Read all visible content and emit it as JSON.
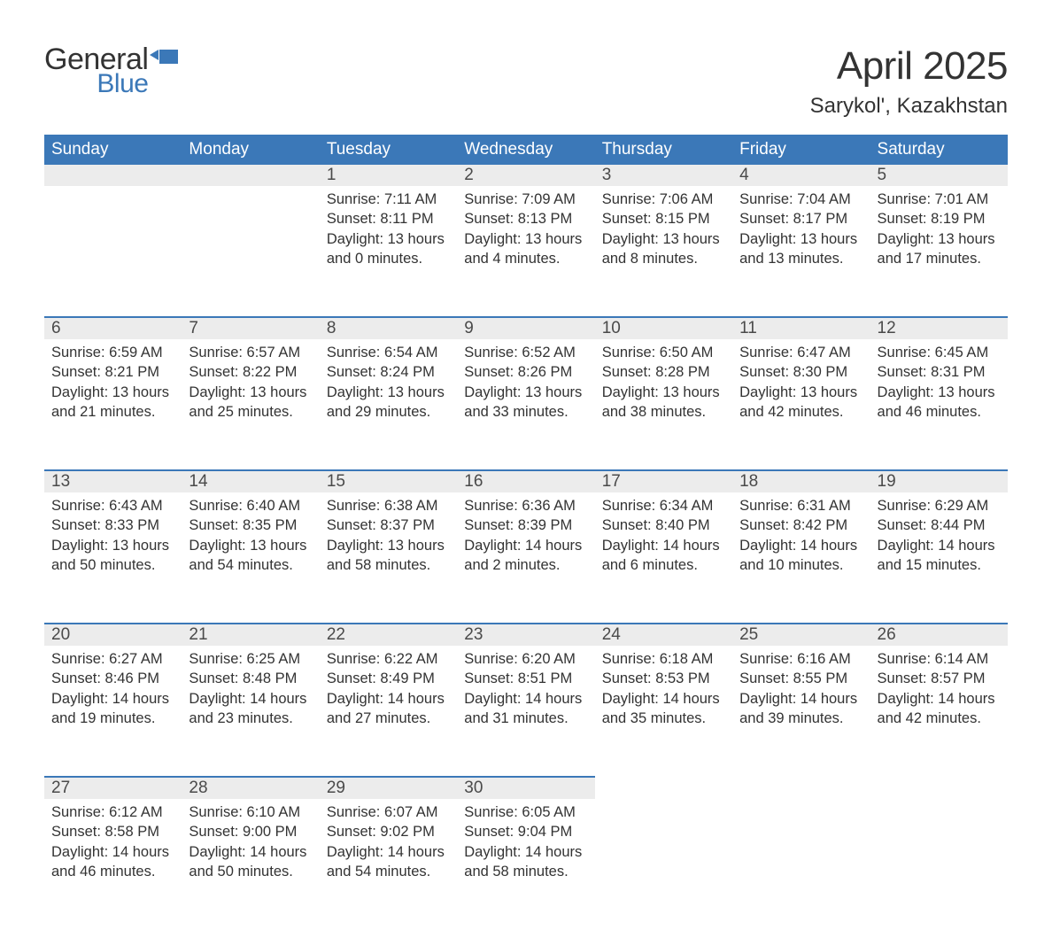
{
  "logo": {
    "general": "General",
    "blue": "Blue"
  },
  "title": "April 2025",
  "location": "Sarykol', Kazakhstan",
  "colors": {
    "header_bg": "#3b78b8",
    "header_text": "#ffffff",
    "daynum_bg": "#ececec",
    "border_top": "#3b78b8",
    "text": "#333333",
    "logo_blue": "#3b78b8"
  },
  "daysOfWeek": [
    "Sunday",
    "Monday",
    "Tuesday",
    "Wednesday",
    "Thursday",
    "Friday",
    "Saturday"
  ],
  "weeks": [
    [
      null,
      null,
      {
        "n": "1",
        "sr": "Sunrise: 7:11 AM",
        "ss": "Sunset: 8:11 PM",
        "d1": "Daylight: 13 hours",
        "d2": "and 0 minutes."
      },
      {
        "n": "2",
        "sr": "Sunrise: 7:09 AM",
        "ss": "Sunset: 8:13 PM",
        "d1": "Daylight: 13 hours",
        "d2": "and 4 minutes."
      },
      {
        "n": "3",
        "sr": "Sunrise: 7:06 AM",
        "ss": "Sunset: 8:15 PM",
        "d1": "Daylight: 13 hours",
        "d2": "and 8 minutes."
      },
      {
        "n": "4",
        "sr": "Sunrise: 7:04 AM",
        "ss": "Sunset: 8:17 PM",
        "d1": "Daylight: 13 hours",
        "d2": "and 13 minutes."
      },
      {
        "n": "5",
        "sr": "Sunrise: 7:01 AM",
        "ss": "Sunset: 8:19 PM",
        "d1": "Daylight: 13 hours",
        "d2": "and 17 minutes."
      }
    ],
    [
      {
        "n": "6",
        "sr": "Sunrise: 6:59 AM",
        "ss": "Sunset: 8:21 PM",
        "d1": "Daylight: 13 hours",
        "d2": "and 21 minutes."
      },
      {
        "n": "7",
        "sr": "Sunrise: 6:57 AM",
        "ss": "Sunset: 8:22 PM",
        "d1": "Daylight: 13 hours",
        "d2": "and 25 minutes."
      },
      {
        "n": "8",
        "sr": "Sunrise: 6:54 AM",
        "ss": "Sunset: 8:24 PM",
        "d1": "Daylight: 13 hours",
        "d2": "and 29 minutes."
      },
      {
        "n": "9",
        "sr": "Sunrise: 6:52 AM",
        "ss": "Sunset: 8:26 PM",
        "d1": "Daylight: 13 hours",
        "d2": "and 33 minutes."
      },
      {
        "n": "10",
        "sr": "Sunrise: 6:50 AM",
        "ss": "Sunset: 8:28 PM",
        "d1": "Daylight: 13 hours",
        "d2": "and 38 minutes."
      },
      {
        "n": "11",
        "sr": "Sunrise: 6:47 AM",
        "ss": "Sunset: 8:30 PM",
        "d1": "Daylight: 13 hours",
        "d2": "and 42 minutes."
      },
      {
        "n": "12",
        "sr": "Sunrise: 6:45 AM",
        "ss": "Sunset: 8:31 PM",
        "d1": "Daylight: 13 hours",
        "d2": "and 46 minutes."
      }
    ],
    [
      {
        "n": "13",
        "sr": "Sunrise: 6:43 AM",
        "ss": "Sunset: 8:33 PM",
        "d1": "Daylight: 13 hours",
        "d2": "and 50 minutes."
      },
      {
        "n": "14",
        "sr": "Sunrise: 6:40 AM",
        "ss": "Sunset: 8:35 PM",
        "d1": "Daylight: 13 hours",
        "d2": "and 54 minutes."
      },
      {
        "n": "15",
        "sr": "Sunrise: 6:38 AM",
        "ss": "Sunset: 8:37 PM",
        "d1": "Daylight: 13 hours",
        "d2": "and 58 minutes."
      },
      {
        "n": "16",
        "sr": "Sunrise: 6:36 AM",
        "ss": "Sunset: 8:39 PM",
        "d1": "Daylight: 14 hours",
        "d2": "and 2 minutes."
      },
      {
        "n": "17",
        "sr": "Sunrise: 6:34 AM",
        "ss": "Sunset: 8:40 PM",
        "d1": "Daylight: 14 hours",
        "d2": "and 6 minutes."
      },
      {
        "n": "18",
        "sr": "Sunrise: 6:31 AM",
        "ss": "Sunset: 8:42 PM",
        "d1": "Daylight: 14 hours",
        "d2": "and 10 minutes."
      },
      {
        "n": "19",
        "sr": "Sunrise: 6:29 AM",
        "ss": "Sunset: 8:44 PM",
        "d1": "Daylight: 14 hours",
        "d2": "and 15 minutes."
      }
    ],
    [
      {
        "n": "20",
        "sr": "Sunrise: 6:27 AM",
        "ss": "Sunset: 8:46 PM",
        "d1": "Daylight: 14 hours",
        "d2": "and 19 minutes."
      },
      {
        "n": "21",
        "sr": "Sunrise: 6:25 AM",
        "ss": "Sunset: 8:48 PM",
        "d1": "Daylight: 14 hours",
        "d2": "and 23 minutes."
      },
      {
        "n": "22",
        "sr": "Sunrise: 6:22 AM",
        "ss": "Sunset: 8:49 PM",
        "d1": "Daylight: 14 hours",
        "d2": "and 27 minutes."
      },
      {
        "n": "23",
        "sr": "Sunrise: 6:20 AM",
        "ss": "Sunset: 8:51 PM",
        "d1": "Daylight: 14 hours",
        "d2": "and 31 minutes."
      },
      {
        "n": "24",
        "sr": "Sunrise: 6:18 AM",
        "ss": "Sunset: 8:53 PM",
        "d1": "Daylight: 14 hours",
        "d2": "and 35 minutes."
      },
      {
        "n": "25",
        "sr": "Sunrise: 6:16 AM",
        "ss": "Sunset: 8:55 PM",
        "d1": "Daylight: 14 hours",
        "d2": "and 39 minutes."
      },
      {
        "n": "26",
        "sr": "Sunrise: 6:14 AM",
        "ss": "Sunset: 8:57 PM",
        "d1": "Daylight: 14 hours",
        "d2": "and 42 minutes."
      }
    ],
    [
      {
        "n": "27",
        "sr": "Sunrise: 6:12 AM",
        "ss": "Sunset: 8:58 PM",
        "d1": "Daylight: 14 hours",
        "d2": "and 46 minutes."
      },
      {
        "n": "28",
        "sr": "Sunrise: 6:10 AM",
        "ss": "Sunset: 9:00 PM",
        "d1": "Daylight: 14 hours",
        "d2": "and 50 minutes."
      },
      {
        "n": "29",
        "sr": "Sunrise: 6:07 AM",
        "ss": "Sunset: 9:02 PM",
        "d1": "Daylight: 14 hours",
        "d2": "and 54 minutes."
      },
      {
        "n": "30",
        "sr": "Sunrise: 6:05 AM",
        "ss": "Sunset: 9:04 PM",
        "d1": "Daylight: 14 hours",
        "d2": "and 58 minutes."
      },
      null,
      null,
      null
    ]
  ]
}
